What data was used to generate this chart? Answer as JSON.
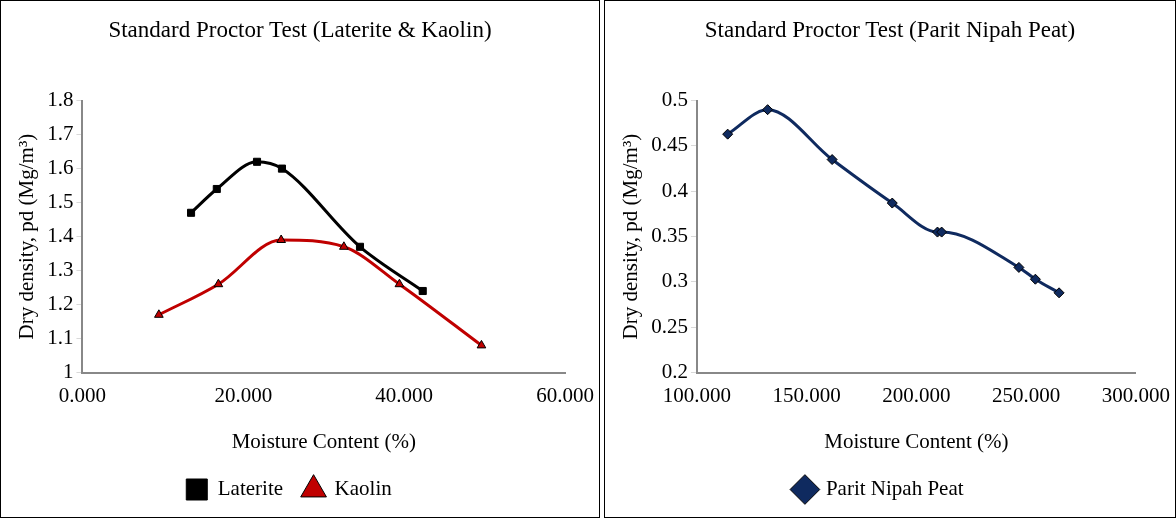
{
  "chart_data": [
    {
      "type": "line",
      "title": "Standard Proctor Test (Laterite & Kaolin)",
      "xlabel": "Moisture Content (%)",
      "ylabel": "Dry density, pd (Mg/m³)",
      "xlim": [
        0,
        60
      ],
      "xticks": [
        {
          "value": 0,
          "label": "0.000"
        },
        {
          "value": 20,
          "label": "20.000"
        },
        {
          "value": 40,
          "label": "40.000"
        },
        {
          "value": 60,
          "label": "60.000"
        }
      ],
      "ylim": [
        1,
        1.8
      ],
      "yticks": [
        1,
        1.1,
        1.2,
        1.3,
        1.4,
        1.5,
        1.6,
        1.7,
        1.8
      ],
      "grid": false,
      "legend": "bottom",
      "series": [
        {
          "name": "Laterite",
          "color": "#000000",
          "marker": "square",
          "x": [
            13.5,
            16.7,
            21.7,
            24.8,
            34.5,
            42.3
          ],
          "values": [
            1.47,
            1.54,
            1.62,
            1.6,
            1.37,
            1.24
          ]
        },
        {
          "name": "Kaolin",
          "color": "#c00000",
          "marker": "triangle",
          "x": [
            9.5,
            16.9,
            24.7,
            32.5,
            39.4,
            49.6
          ],
          "values": [
            1.17,
            1.26,
            1.39,
            1.37,
            1.26,
            1.08
          ]
        }
      ]
    },
    {
      "type": "line",
      "title": "Standard Proctor Test (Parit Nipah Peat)",
      "xlabel": "Moisture Content (%)",
      "ylabel": "Dry density, pd (Mg/m³)",
      "xlim": [
        100,
        300
      ],
      "xticks": [
        {
          "value": 100,
          "label": "100.000"
        },
        {
          "value": 150,
          "label": "150.000"
        },
        {
          "value": 200,
          "label": "200.000"
        },
        {
          "value": 250,
          "label": "250.000"
        },
        {
          "value": 300,
          "label": "300.000"
        }
      ],
      "ylim": [
        0.2,
        0.5
      ],
      "yticks": [
        0.2,
        0.25,
        0.3,
        0.35,
        0.4,
        0.45,
        0.5
      ],
      "grid": false,
      "legend": "bottom",
      "series": [
        {
          "name": "Parit Nipah Peat",
          "color": "#0f2a5f",
          "marker": "diamond",
          "x": [
            114.0,
            132.2,
            161.6,
            189.0,
            209.6,
            211.5,
            246.7,
            254.2,
            265.0
          ],
          "values": [
            0.463,
            0.49,
            0.435,
            0.387,
            0.355,
            0.355,
            0.316,
            0.303,
            0.288
          ]
        }
      ]
    }
  ]
}
